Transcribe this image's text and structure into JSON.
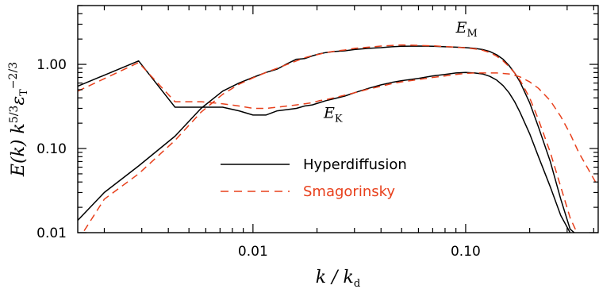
{
  "chart_data": {
    "type": "line",
    "title": "",
    "xlabel": "k / k_d",
    "ylabel": "E(k) k^{5/3} ε_T^{-2/3}",
    "xscale": "log",
    "yscale": "log",
    "xlim": [
      0.0015,
      0.42
    ],
    "ylim": [
      0.01,
      5.0
    ],
    "x_ticks": [
      0.01,
      0.1
    ],
    "x_tick_labels": [
      "0.01",
      "0.10"
    ],
    "y_ticks": [
      0.01,
      0.1,
      1.0
    ],
    "y_tick_labels": [
      "0.01",
      "0.10",
      "1.00"
    ],
    "legend": {
      "placement": "center-left",
      "entries": [
        {
          "label": "Hyperdiffusion",
          "color": "#000000",
          "dash": "solid"
        },
        {
          "label": "Smagorinsky",
          "color": "#e8401c",
          "dash": "dashed"
        }
      ]
    },
    "annotations": [
      {
        "text": "E",
        "sub": "M",
        "x": 0.09,
        "y": 2.4
      },
      {
        "text": "E",
        "sub": "K",
        "x": 0.0215,
        "y": 0.23
      }
    ],
    "series": [
      {
        "name": "Hyperdiffusion",
        "component": "E_M",
        "color": "#000000",
        "dash": "solid",
        "x": [
          0.0015,
          0.002,
          0.0029,
          0.0043,
          0.0057,
          0.0072,
          0.0086,
          0.01,
          0.0115,
          0.013,
          0.0145,
          0.016,
          0.0175,
          0.019,
          0.0205,
          0.022,
          0.024,
          0.027,
          0.03,
          0.035,
          0.04,
          0.045,
          0.05,
          0.06,
          0.07,
          0.08,
          0.09,
          0.1,
          0.11,
          0.12,
          0.13,
          0.14,
          0.15,
          0.16,
          0.17,
          0.18,
          0.2,
          0.22,
          0.25,
          0.28,
          0.31,
          0.34
        ],
        "y": [
          0.014,
          0.03,
          0.062,
          0.14,
          0.3,
          0.48,
          0.6,
          0.7,
          0.8,
          0.88,
          1.02,
          1.15,
          1.17,
          1.26,
          1.33,
          1.38,
          1.42,
          1.45,
          1.5,
          1.55,
          1.58,
          1.62,
          1.64,
          1.65,
          1.64,
          1.62,
          1.6,
          1.58,
          1.55,
          1.5,
          1.42,
          1.3,
          1.15,
          0.97,
          0.79,
          0.62,
          0.35,
          0.18,
          0.07,
          0.025,
          0.011,
          0.009
        ]
      },
      {
        "name": "Hyperdiffusion",
        "component": "E_K",
        "color": "#000000",
        "dash": "solid",
        "x": [
          0.0015,
          0.0029,
          0.0043,
          0.0057,
          0.0072,
          0.0086,
          0.01,
          0.0115,
          0.013,
          0.0145,
          0.016,
          0.0175,
          0.019,
          0.0205,
          0.022,
          0.024,
          0.027,
          0.03,
          0.035,
          0.04,
          0.045,
          0.05,
          0.06,
          0.07,
          0.08,
          0.09,
          0.1,
          0.11,
          0.12,
          0.13,
          0.14,
          0.15,
          0.16,
          0.17,
          0.18,
          0.2,
          0.22,
          0.25,
          0.28,
          0.31,
          0.34
        ],
        "y": [
          0.55,
          1.1,
          0.31,
          0.31,
          0.31,
          0.28,
          0.25,
          0.25,
          0.28,
          0.29,
          0.3,
          0.32,
          0.33,
          0.35,
          0.37,
          0.39,
          0.42,
          0.46,
          0.52,
          0.57,
          0.61,
          0.64,
          0.68,
          0.73,
          0.76,
          0.79,
          0.8,
          0.79,
          0.77,
          0.72,
          0.65,
          0.56,
          0.46,
          0.36,
          0.27,
          0.15,
          0.08,
          0.035,
          0.016,
          0.01,
          0.007
        ]
      },
      {
        "name": "Smagorinsky",
        "component": "E_M",
        "color": "#e8401c",
        "dash": "dashed",
        "x": [
          0.0015,
          0.002,
          0.0029,
          0.0043,
          0.0057,
          0.0072,
          0.0086,
          0.01,
          0.0115,
          0.013,
          0.0145,
          0.016,
          0.0175,
          0.019,
          0.0205,
          0.022,
          0.024,
          0.027,
          0.03,
          0.035,
          0.04,
          0.045,
          0.05,
          0.06,
          0.07,
          0.08,
          0.09,
          0.1,
          0.11,
          0.12,
          0.13,
          0.14,
          0.15,
          0.16,
          0.17,
          0.18,
          0.2,
          0.22,
          0.25,
          0.28,
          0.31,
          0.34
        ],
        "y": [
          0.008,
          0.025,
          0.05,
          0.125,
          0.27,
          0.44,
          0.58,
          0.69,
          0.8,
          0.9,
          1.0,
          1.1,
          1.2,
          1.27,
          1.32,
          1.38,
          1.43,
          1.48,
          1.55,
          1.6,
          1.65,
          1.68,
          1.7,
          1.68,
          1.66,
          1.63,
          1.6,
          1.57,
          1.53,
          1.47,
          1.38,
          1.25,
          1.1,
          0.94,
          0.79,
          0.65,
          0.4,
          0.22,
          0.09,
          0.035,
          0.015,
          0.009
        ]
      },
      {
        "name": "Smagorinsky",
        "component": "E_K",
        "color": "#e8401c",
        "dash": "dashed",
        "x": [
          0.0015,
          0.0029,
          0.0043,
          0.0057,
          0.0072,
          0.0086,
          0.01,
          0.0115,
          0.013,
          0.0145,
          0.016,
          0.0175,
          0.019,
          0.0205,
          0.022,
          0.024,
          0.027,
          0.03,
          0.035,
          0.04,
          0.045,
          0.05,
          0.06,
          0.07,
          0.08,
          0.09,
          0.1,
          0.11,
          0.12,
          0.13,
          0.14,
          0.15,
          0.16,
          0.17,
          0.18,
          0.2,
          0.22,
          0.25,
          0.28,
          0.31,
          0.34,
          0.38,
          0.42
        ],
        "y": [
          0.48,
          1.05,
          0.36,
          0.36,
          0.34,
          0.32,
          0.3,
          0.3,
          0.31,
          0.32,
          0.33,
          0.34,
          0.35,
          0.37,
          0.38,
          0.4,
          0.43,
          0.46,
          0.51,
          0.55,
          0.59,
          0.62,
          0.66,
          0.7,
          0.73,
          0.76,
          0.78,
          0.79,
          0.79,
          0.79,
          0.79,
          0.78,
          0.77,
          0.74,
          0.71,
          0.62,
          0.52,
          0.37,
          0.24,
          0.15,
          0.09,
          0.055,
          0.035
        ]
      }
    ]
  }
}
